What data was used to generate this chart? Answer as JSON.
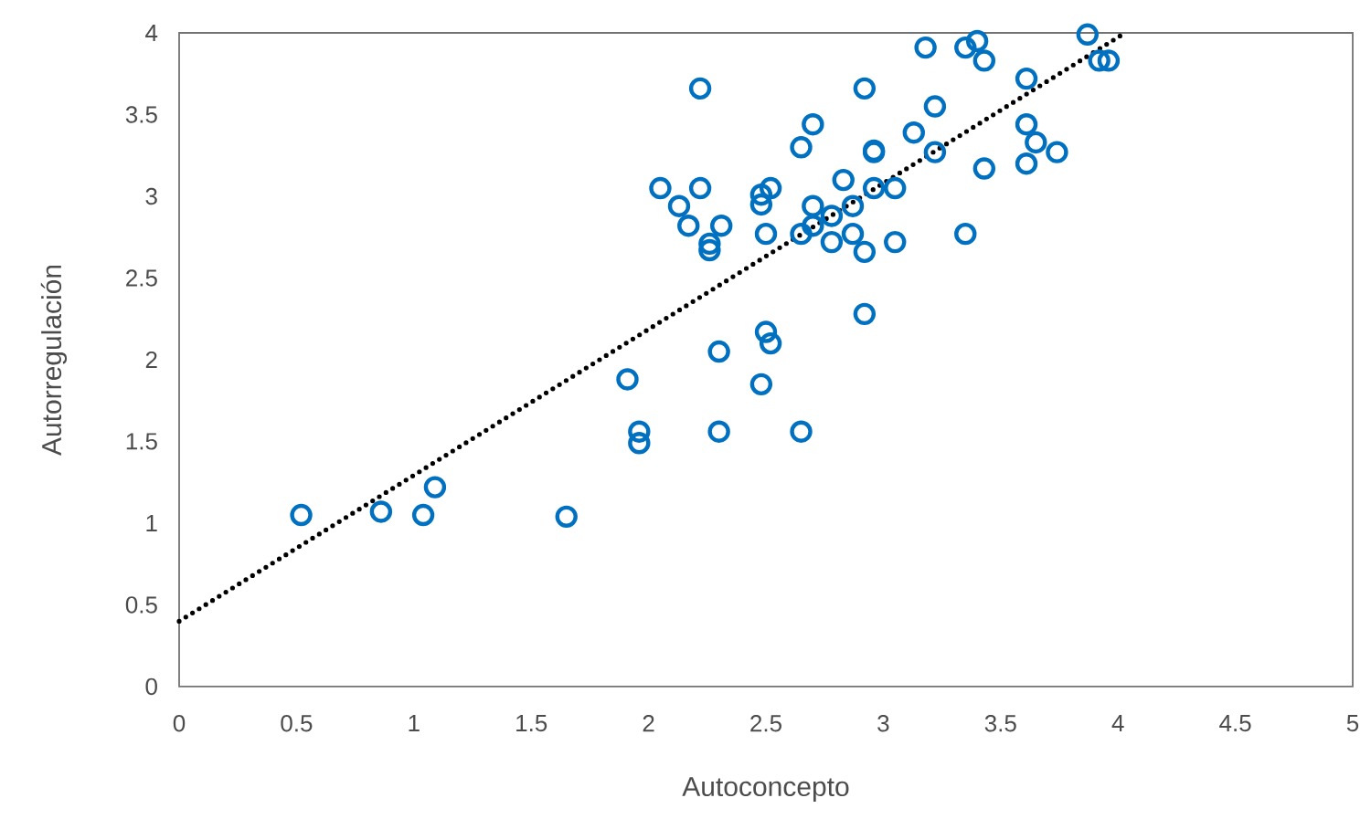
{
  "chart_data": {
    "type": "scatter",
    "xlabel": "Autoconcepto",
    "ylabel": "Autorregulación",
    "xlim": [
      0,
      5
    ],
    "ylim": [
      0,
      4
    ],
    "xticks": [
      0,
      0.5,
      1,
      1.5,
      2,
      2.5,
      3,
      3.5,
      4,
      4.5,
      5
    ],
    "yticks": [
      0,
      0.5,
      1,
      1.5,
      2,
      2.5,
      3,
      3.5,
      4
    ],
    "grid": false,
    "series": [
      {
        "color": "#0070c0",
        "marker": "circle",
        "x": [
          2.22,
          2.05,
          2.22,
          2.13,
          2.17,
          2.31,
          2.26,
          2.26,
          1.91,
          2.3,
          1.96,
          1.96,
          2.3,
          1.09,
          0.52,
          0.86,
          1.04,
          1.65,
          2.48,
          2.48,
          2.52,
          2.5,
          2.5,
          2.52,
          2.48,
          2.65,
          2.65,
          2.7,
          2.7,
          2.65,
          2.7,
          2.78,
          2.78,
          2.83,
          2.87,
          2.87,
          2.92,
          2.92,
          2.92,
          2.96,
          2.96,
          2.96,
          3.05,
          3.05,
          3.13,
          3.18,
          3.22,
          3.22,
          3.35,
          3.4,
          3.43,
          3.35,
          3.43,
          3.61,
          3.61,
          3.65,
          3.74,
          3.61,
          3.87,
          3.92,
          3.96
        ],
        "values": [
          3.66,
          3.05,
          3.05,
          2.94,
          2.82,
          2.82,
          2.71,
          2.67,
          1.88,
          2.05,
          1.56,
          1.49,
          1.56,
          1.22,
          1.05,
          1.07,
          1.05,
          1.04,
          3.01,
          2.95,
          3.05,
          2.77,
          2.17,
          2.1,
          1.85,
          1.56,
          3.3,
          3.44,
          2.94,
          2.77,
          2.82,
          2.88,
          2.72,
          3.1,
          2.77,
          2.94,
          2.66,
          3.66,
          2.28,
          3.28,
          3.27,
          3.05,
          3.05,
          2.72,
          3.39,
          3.91,
          3.55,
          3.27,
          3.91,
          3.95,
          3.83,
          2.77,
          3.17,
          3.72,
          3.44,
          3.33,
          3.27,
          3.2,
          3.99,
          3.83,
          3.83
        ]
      },
      {
        "type": "line",
        "color": "#000000",
        "line_style": "dotted",
        "marker": "none",
        "x": [
          0,
          4.03
        ],
        "values": [
          0.4,
          4
        ]
      }
    ]
  }
}
